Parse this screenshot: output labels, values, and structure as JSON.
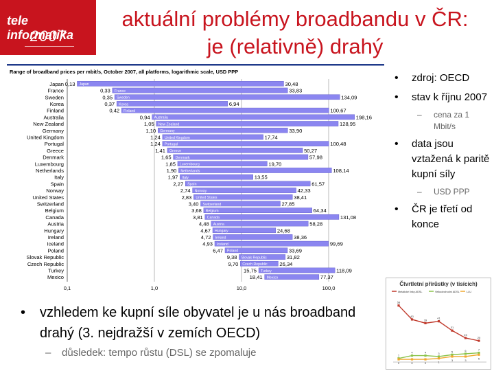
{
  "logo": {
    "line1": "tele informatika",
    "line2": "2007"
  },
  "title": {
    "line1": "aktuální problémy broadbandu v ČR:",
    "line2": "je (relativně) drahý"
  },
  "chart_data": {
    "type": "bar",
    "title": "Range of broadband prices per mbit/s, October 2007, all platforms, logarithmic scale, USD PPP",
    "scale": "log",
    "xlim": [
      0.1,
      1000
    ],
    "x_ticks": [
      "0,1",
      "1,0",
      "10,0",
      "100,0"
    ],
    "grid": "on",
    "rows": [
      {
        "country": "Japan",
        "min": 0.13,
        "max": 30.48,
        "min_label": "0,13",
        "max_label": "30,48"
      },
      {
        "country": "France",
        "min": 0.33,
        "max": 33.83,
        "min_label": "0,33",
        "max_label": "33,83"
      },
      {
        "country": "Sweden",
        "min": 0.35,
        "max": 134.09,
        "min_label": "0,35",
        "max_label": "134,09"
      },
      {
        "country": "Korea",
        "min": 0.37,
        "max": 6.94,
        "min_label": "0,37",
        "max_label": "6,94"
      },
      {
        "country": "Finland",
        "min": 0.42,
        "max": 100.67,
        "min_label": "0,42",
        "max_label": "100,67"
      },
      {
        "country": "Australia",
        "min": 0.94,
        "max": 198.16,
        "min_label": "0,94",
        "max_label": "198,16"
      },
      {
        "country": "New Zealand",
        "min": 1.05,
        "max": 128.95,
        "min_label": "1,05",
        "max_label": "128,95"
      },
      {
        "country": "Germany",
        "min": 1.1,
        "max": 33.9,
        "min_label": "1,10",
        "max_label": "33,90"
      },
      {
        "country": "United Kingdom",
        "min": 1.24,
        "max": 17.74,
        "min_label": "1,24",
        "max_label": "17,74"
      },
      {
        "country": "Portugal",
        "min": 1.24,
        "max": 100.48,
        "min_label": "1,24",
        "max_label": "100,48"
      },
      {
        "country": "Greece",
        "min": 1.41,
        "max": 50.27,
        "min_label": "1,41",
        "max_label": "50,27"
      },
      {
        "country": "Denmark",
        "min": 1.65,
        "max": 57.98,
        "min_label": "1,65",
        "max_label": "57,98"
      },
      {
        "country": "Luxembourg",
        "min": 1.85,
        "max": 19.7,
        "min_label": "1,85",
        "max_label": "19,70"
      },
      {
        "country": "Netherlands",
        "min": 1.9,
        "max": 108.14,
        "min_label": "1,90",
        "max_label": "108,14"
      },
      {
        "country": "Italy",
        "min": 1.97,
        "max": 13.55,
        "min_label": "1,97",
        "max_label": "13,55"
      },
      {
        "country": "Spain",
        "min": 2.27,
        "max": 61.57,
        "min_label": "2,27",
        "max_label": "61,57"
      },
      {
        "country": "Norway",
        "min": 2.74,
        "max": 42.33,
        "min_label": "2,74",
        "max_label": "42,33"
      },
      {
        "country": "United States",
        "min": 2.83,
        "max": 38.41,
        "min_label": "2,83",
        "max_label": "38,41"
      },
      {
        "country": "Switzerland",
        "min": 3.4,
        "max": 27.85,
        "min_label": "3,40",
        "max_label": "27,85"
      },
      {
        "country": "Belgium",
        "min": 3.68,
        "max": 64.34,
        "min_label": "3,68",
        "max_label": "64,34"
      },
      {
        "country": "Canada",
        "min": 3.81,
        "max": 131.08,
        "min_label": "3,81",
        "max_label": "131,08"
      },
      {
        "country": "Austria",
        "min": 4.48,
        "max": 58.28,
        "min_label": "4,48",
        "max_label": "58,28"
      },
      {
        "country": "Hungary",
        "min": 4.67,
        "max": 24.68,
        "min_label": "4,67",
        "max_label": "24,68"
      },
      {
        "country": "Ireland",
        "min": 4.72,
        "max": 38.36,
        "min_label": "4,72",
        "max_label": "38,36"
      },
      {
        "country": "Iceland",
        "min": 4.93,
        "max": 99.69,
        "min_label": "4,93",
        "max_label": "99,69"
      },
      {
        "country": "Poland",
        "min": 6.47,
        "max": 33.69,
        "min_label": "6,47",
        "max_label": "33,69"
      },
      {
        "country": "Slovak Republic",
        "min": 9.38,
        "max": 31.82,
        "min_label": "9,38",
        "max_label": "31,82"
      },
      {
        "country": "Czech Republic",
        "min": 9.7,
        "max": 26.34,
        "min_label": "9,70",
        "max_label": "26,34"
      },
      {
        "country": "Turkey",
        "min": 15.75,
        "max": 118.09,
        "min_label": "15,75",
        "max_label": "118,09"
      },
      {
        "country": "Mexico",
        "min": 18.41,
        "max": 77.37,
        "min_label": "18,41",
        "max_label": "77,37"
      }
    ]
  },
  "bullets": [
    {
      "text": "zdroj: OECD"
    },
    {
      "text": "stav k říjnu 2007",
      "sub": "cena za 1 Mbit/s"
    },
    {
      "text": "data jsou vztažená k paritě kupní síly",
      "sub": "USD PPP"
    },
    {
      "text": "ČR je třetí od konce"
    }
  ],
  "bottom": {
    "bullet": "vzhledem ke kupní síle obyvatel je u nás broadband drahý (3. nejdražší v zemích OECD)",
    "sub": "důsledek: tempo růstu (DSL) se zpomaluje"
  },
  "thumbnail": {
    "title": "Čtvrtletní přírůstky (v tisících)",
    "legend": [
      "Metalické linky ADSL",
      "Velkoobchodní ADSL",
      "LLU"
    ],
    "colors": [
      "#c0392b",
      "#8bc34a",
      "#f0a830"
    ],
    "series": [
      {
        "values": [
          58,
          43,
          39,
          41,
          31,
          23,
          20
        ],
        "labels": [
          "58",
          "43",
          "39",
          "41",
          "31",
          "23",
          "20"
        ]
      },
      {
        "values": [
          1,
          4,
          4,
          3,
          5,
          6,
          7
        ],
        "labels": [
          "1",
          "4",
          "4",
          "3",
          "5",
          "6",
          "7"
        ]
      },
      {
        "values": [
          0,
          0,
          0,
          1,
          3,
          3,
          5
        ],
        "labels": [
          "0",
          "0",
          "0",
          "1",
          "3",
          "3",
          "5"
        ]
      }
    ]
  }
}
